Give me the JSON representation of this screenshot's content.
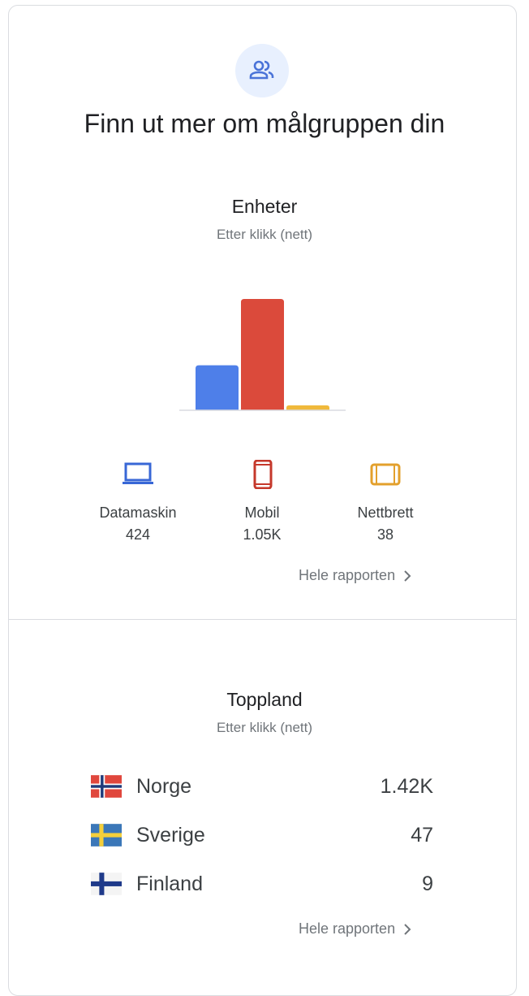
{
  "header": {
    "icon": "audience-icon",
    "title": "Finn ut mer om målgruppen din"
  },
  "devices": {
    "title": "Enheter",
    "subtitle": "Etter klikk (nett)",
    "chart_data": {
      "type": "bar",
      "categories": [
        "Datamaskin",
        "Mobil",
        "Nettbrett"
      ],
      "values": [
        424,
        1050,
        38
      ],
      "colors": [
        "#4e7fe9",
        "#db4a3b",
        "#f0b93b"
      ]
    },
    "items": [
      {
        "icon": "laptop-icon",
        "label": "Datamaskin",
        "value": "424",
        "color": "#3867d6"
      },
      {
        "icon": "phone-icon",
        "label": "Mobil",
        "value": "1.05K",
        "color": "#c5382b"
      },
      {
        "icon": "tablet-icon",
        "label": "Nettbrett",
        "value": "38",
        "color": "#e3a02c"
      }
    ],
    "link": "Hele rapporten"
  },
  "countries": {
    "title": "Toppland",
    "subtitle": "Etter klikk (nett)",
    "items": [
      {
        "flag": "norway-flag-icon",
        "name": "Norge",
        "value": "1.42K"
      },
      {
        "flag": "sweden-flag-icon",
        "name": "Sverige",
        "value": "47"
      },
      {
        "flag": "finland-flag-icon",
        "name": "Finland",
        "value": "9"
      }
    ],
    "link": "Hele rapporten"
  }
}
